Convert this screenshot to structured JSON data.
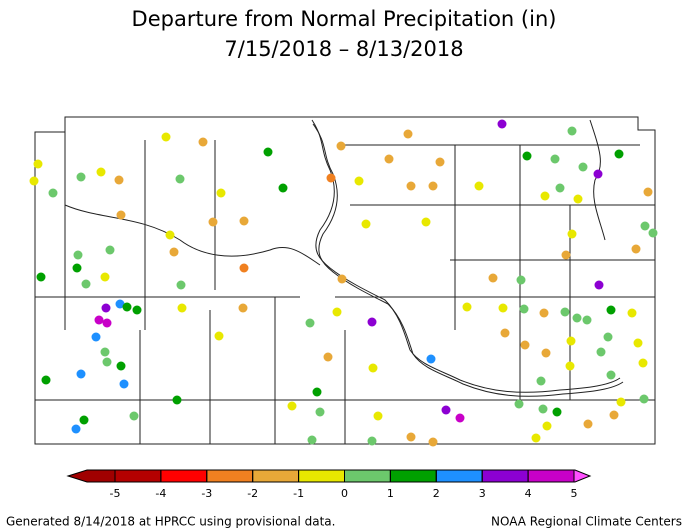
{
  "title": "Departure from Normal Precipitation (in)",
  "subtitle": "7/15/2018 – 8/13/2018",
  "colorbar": {
    "ticks": [
      -5,
      -4,
      -3,
      -2,
      -1,
      0,
      1,
      2,
      3,
      4,
      5
    ],
    "under_color": "#a00000",
    "colors": [
      "#b40000",
      "#ff0000",
      "#f08020",
      "#e8a838",
      "#e8e800",
      "#6cc86c",
      "#00a000",
      "#1e90ff",
      "#8c00d2",
      "#c800c8"
    ],
    "over_color": "#ff50ff"
  },
  "stations": [
    -0.5,
    -0.5,
    0.5,
    -0.5,
    -1.5,
    0.5,
    -0.5,
    -1.5,
    0.5,
    1.5,
    1.5,
    -0.5,
    -1.5,
    -1.5,
    -1.5,
    -0.5,
    -1.5,
    0.5,
    0.5,
    1.5,
    1.5,
    -0.5,
    0.5,
    0.5,
    -2.5,
    -1.5,
    -0.5,
    3.5,
    2.5,
    1.5,
    1.5,
    4.5,
    4.5,
    2.5,
    0.5,
    0.5,
    1.5,
    2.5,
    2.5,
    1.5,
    1.5,
    0.5,
    1.5,
    2.5,
    -0.5,
    0.5,
    -0.5,
    3.5,
    -1.5,
    -0.5,
    1.5,
    -0.5,
    0.5,
    -0.5,
    0.5,
    0.5,
    -1.5,
    -1.5,
    3.5,
    4.5,
    2.5,
    -1.5,
    -2.5,
    -1.5,
    -0.5,
    -1.5,
    -1.5,
    -1.5,
    -1.5,
    -0.5,
    -0.5,
    -0.5,
    3.5,
    1.5,
    0.5,
    0.5,
    0.5,
    3.5,
    1.5,
    0.5,
    -0.5,
    -0.5,
    -1.5,
    -0.5,
    0.5,
    0.5,
    -1.5,
    -1.5,
    -1.5,
    0.5,
    3.5,
    -1.5,
    -0.5,
    -0.5,
    -1.5,
    0.5,
    0.5,
    0.5,
    1.5,
    -0.5,
    0.5,
    -1.5,
    -1.5,
    -1.5,
    -0.5,
    0.5,
    -0.5,
    0.5,
    -0.5,
    -0.5,
    0.5,
    0.5,
    0.5,
    1.5,
    0.5,
    0.5,
    -0.5,
    -1.5,
    -1.5,
    -0.5,
    -0.5
  ],
  "footer_left": "Generated 8/14/2018 at HPRCC using provisional data.",
  "footer_right": "NOAA Regional Climate Centers"
}
